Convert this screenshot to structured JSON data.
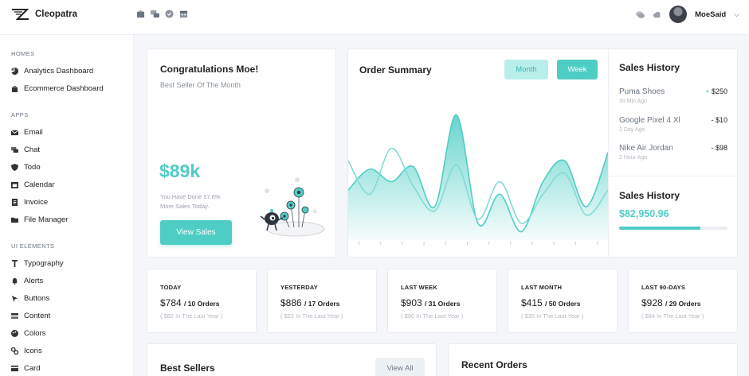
{
  "brand": {
    "name": "Cleopatra"
  },
  "header": {
    "top_icons": [
      "inbox-icon",
      "chat-bubbles-icon",
      "check-circle-icon",
      "calendar-icon"
    ],
    "right_icons": [
      "messages-icon",
      "cloud-icon"
    ],
    "user": {
      "name": "MoeSaid"
    }
  },
  "sidebar": {
    "sections": [
      {
        "title": "HOMES",
        "items": [
          {
            "label": "Analytics Dashboard",
            "icon": "pie-chart-icon"
          },
          {
            "label": "Ecommerce Dashboard",
            "icon": "shopping-bag-icon"
          }
        ]
      },
      {
        "title": "APPS",
        "items": [
          {
            "label": "Email",
            "icon": "envelope-icon"
          },
          {
            "label": "Chat",
            "icon": "chat-icon"
          },
          {
            "label": "Todo",
            "icon": "shield-icon"
          },
          {
            "label": "Calendar",
            "icon": "calendar-icon"
          },
          {
            "label": "Invoice",
            "icon": "document-icon"
          },
          {
            "label": "File Manager",
            "icon": "folder-icon"
          }
        ]
      },
      {
        "title": "UI ELEMENTS",
        "items": [
          {
            "label": "Typography",
            "icon": "text-icon"
          },
          {
            "label": "Alerts",
            "icon": "bell-icon"
          },
          {
            "label": "Buttons",
            "icon": "cursor-icon"
          },
          {
            "label": "Content",
            "icon": "layers-icon"
          },
          {
            "label": "Colors",
            "icon": "palette-icon"
          },
          {
            "label": "Icons",
            "icon": "icons-icon"
          },
          {
            "label": "Card",
            "icon": "card-icon"
          }
        ]
      }
    ]
  },
  "congrats": {
    "title": "Congratulations Moe!",
    "subtitle": "Best Seller Of The Month",
    "amount": "$89k",
    "desc_line1": "You Have Done 57.6%",
    "desc_line2": "More Sales Today.",
    "button": "View Sales"
  },
  "order_summary": {
    "title": "Order Summary",
    "tabs": {
      "month": "Month",
      "week": "Week"
    },
    "active_tab": "Week"
  },
  "chart_data": {
    "type": "area",
    "x": [
      0,
      1,
      2,
      3,
      4,
      5,
      6,
      7,
      8,
      9,
      10,
      11,
      12
    ],
    "series": [
      {
        "values": [
          60,
          85,
          70,
          88,
          40,
          150,
          20,
          55,
          10,
          70,
          95,
          40,
          105
        ]
      },
      {
        "values": [
          95,
          55,
          110,
          65,
          35,
          90,
          25,
          70,
          20,
          55,
          80,
          30,
          60
        ]
      }
    ],
    "ylim": [
      0,
      160
    ],
    "grid": false,
    "colors": {
      "primary": "#4ecdc4",
      "secondary": "#b9efeb"
    }
  },
  "sales_history": {
    "title": "Sales History",
    "items": [
      {
        "name": "Puma Shoes",
        "time": "30 Min Ago",
        "sign": "+",
        "amount": "$250"
      },
      {
        "name": "Google Pixel 4 Xl",
        "time": "1 Day Ago",
        "sign": "-",
        "amount": "$10"
      },
      {
        "name": "Nike Air Jordan",
        "time": "2 Hour Ago",
        "sign": "-",
        "amount": "$98"
      }
    ],
    "title2": "Sales History",
    "total": "$82,950.96",
    "progress": 0.75
  },
  "stats": [
    {
      "label": "TODAY",
      "value": "$784",
      "orders": "/ 10 Orders",
      "sub": "( $82 In The Last Year )"
    },
    {
      "label": "YESTERDAY",
      "value": "$886",
      "orders": "/ 17 Orders",
      "sub": "( $22 In The Last Year )"
    },
    {
      "label": "LAST WEEK",
      "value": "$903",
      "orders": "/ 31 Orders",
      "sub": "( $90 In The Last Year )"
    },
    {
      "label": "LAST MONTH",
      "value": "$415",
      "orders": "/ 50 Orders",
      "sub": "( $35 In The Last Year )"
    },
    {
      "label": "LAST 90-DAYS",
      "value": "$928",
      "orders": "/ 29 Orders",
      "sub": "( $84 In The Last Year )"
    }
  ],
  "best_sellers": {
    "title": "Best Sellers",
    "button": "View All"
  },
  "recent_orders": {
    "title": "Recent Orders"
  }
}
